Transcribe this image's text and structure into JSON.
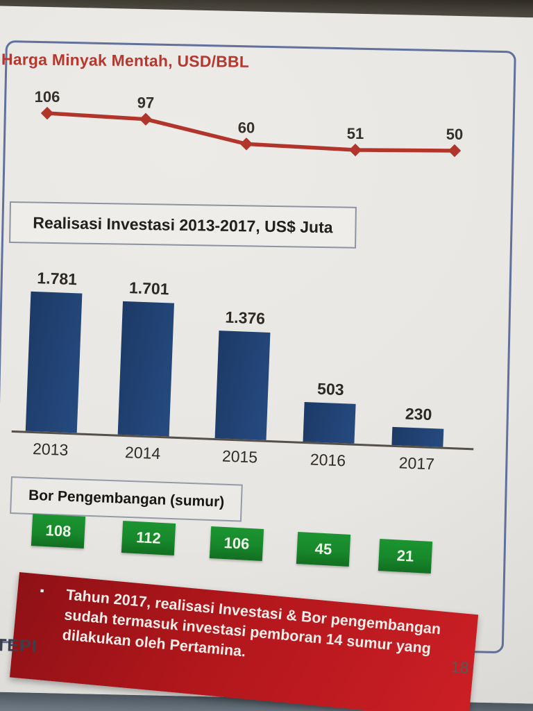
{
  "header": {
    "title": "Harga Minyak Mentah, USD/BBL"
  },
  "invest_box": {
    "title": "Realisasi Investasi 2013-2017, US$ Juta"
  },
  "bor_box": {
    "title": "Bor Pengembangan (sumur)"
  },
  "note": {
    "bullet": "▪",
    "text": "Tahun 2017, realisasi Investasi & Bor pengembangan sudah termasuk investasi pemboran 14 sumur yang dilakukan oleh Pertamina."
  },
  "footer": {
    "left_text": "TEPI",
    "page_number": "18"
  },
  "colors": {
    "title_red": "#b5372e",
    "line_red": "#b2352c",
    "bar_blue": "#264a80",
    "green_box": "#17882b",
    "note_red_dark": "#8e1116",
    "note_red": "#cb1f25",
    "frame_blue": "#4a5c8e",
    "axis_gray": "#55504a"
  },
  "chart_data": [
    {
      "type": "line",
      "title": "Harga Minyak Mentah, USD/BBL",
      "values": [
        106,
        97,
        60,
        51,
        50
      ],
      "labels": [
        "106",
        "97",
        "60",
        "51",
        "50"
      ],
      "ylabel": "USD/BBL",
      "grid": false,
      "marker": "diamond",
      "legend": "none"
    },
    {
      "type": "bar",
      "title": "Realisasi Investasi 2013-2017, US$ Juta",
      "categories": [
        "2013",
        "2014",
        "2015",
        "2016",
        "2017"
      ],
      "values": [
        1781,
        1701,
        1376,
        503,
        230
      ],
      "labels": [
        "1.781",
        "1.701",
        "1.376",
        "503",
        "230"
      ],
      "ylabel": "US$ Juta",
      "grid": false,
      "legend": "none"
    },
    {
      "type": "bar",
      "title": "Bor Pengembangan (sumur)",
      "categories": [
        "2013",
        "2014",
        "2015",
        "2016",
        "2017"
      ],
      "values": [
        108,
        112,
        106,
        45,
        21
      ],
      "labels": [
        "108",
        "112",
        "106",
        "45",
        "21"
      ],
      "ylabel": "sumur",
      "presentation": "value-boxes",
      "legend": "none"
    }
  ]
}
